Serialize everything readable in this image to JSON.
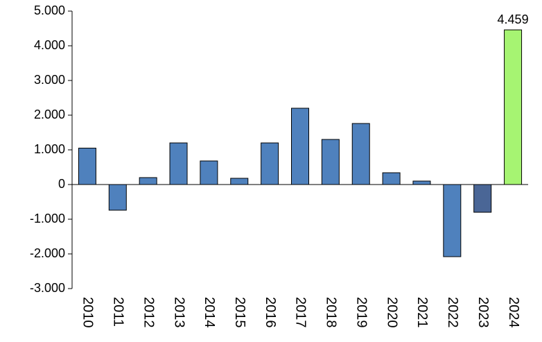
{
  "chart_data": {
    "type": "bar",
    "categories": [
      "2010",
      "2011",
      "2012",
      "2013",
      "2014",
      "2015",
      "2016",
      "2017",
      "2018",
      "2019",
      "2020",
      "2021",
      "2022",
      "2023",
      "2024"
    ],
    "values": [
      1050,
      -740,
      200,
      1200,
      680,
      180,
      1200,
      2200,
      1300,
      1760,
      340,
      100,
      -2080,
      -800,
      4459
    ],
    "value_labels": [
      null,
      null,
      null,
      null,
      null,
      null,
      null,
      null,
      null,
      null,
      null,
      null,
      null,
      null,
      "4.459"
    ],
    "colors": [
      "#4f81bd",
      "#4f81bd",
      "#4f81bd",
      "#4f81bd",
      "#4f81bd",
      "#4f81bd",
      "#4f81bd",
      "#4f81bd",
      "#4f81bd",
      "#4f81bd",
      "#4f81bd",
      "#4f81bd",
      "#4f81bd",
      "#4a6696",
      "#a6f472"
    ],
    "ylim": [
      -3000,
      5000
    ],
    "yticks": [
      {
        "value": -3000,
        "label": "-3.000"
      },
      {
        "value": -2000,
        "label": "-2.000"
      },
      {
        "value": -1000,
        "label": "-1.000"
      },
      0,
      {
        "value": 1000,
        "label": "1.000"
      },
      {
        "value": 2000,
        "label": "2.000"
      },
      {
        "value": 3000,
        "label": "3.000"
      },
      {
        "value": 4000,
        "label": "4.000"
      },
      {
        "value": 5000,
        "label": "5.000"
      }
    ],
    "grid": false
  }
}
